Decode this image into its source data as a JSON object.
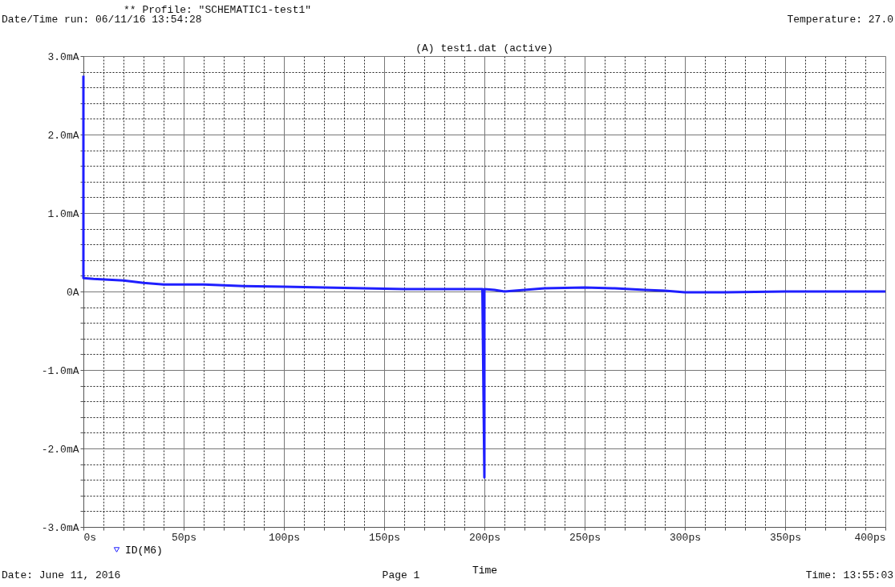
{
  "chart_data": {
    "type": "line",
    "title": "(A) test1.dat (active)",
    "xlabel": "Time",
    "annotations": [
      "** Profile: \"SCHEMATIC1-test1\"",
      "Date/Time run: 06/11/16 13:54:28",
      "Temperature: 27.0",
      "Date: June 11, 2016",
      "Page 1",
      "Time: 13:55:03"
    ],
    "series": [
      {
        "name": "ID(M6)",
        "color": "#1f1fff",
        "x": [
          0,
          0,
          5,
          20,
          30,
          40,
          60,
          80,
          100,
          120,
          140,
          160,
          180,
          199,
          200,
          200,
          205,
          210,
          230,
          250,
          265,
          280,
          290,
          300,
          320,
          350,
          400
        ],
        "values": [
          2.75,
          0.17,
          0.16,
          0.14,
          0.11,
          0.09,
          0.09,
          0.07,
          0.06,
          0.05,
          0.04,
          0.03,
          0.03,
          0.03,
          -2.37,
          0.03,
          0.02,
          0.0,
          0.04,
          0.05,
          0.04,
          0.02,
          0.01,
          -0.01,
          -0.01,
          0.0,
          0.0
        ]
      }
    ],
    "xlim": [
      0,
      400
    ],
    "ylim": [
      -3,
      3
    ],
    "xticks": [
      {
        "value": 0,
        "label": "0s"
      },
      {
        "value": 50,
        "label": "50ps"
      },
      {
        "value": 100,
        "label": "100ps"
      },
      {
        "value": 150,
        "label": "150ps"
      },
      {
        "value": 200,
        "label": "200ps"
      },
      {
        "value": 250,
        "label": "250ps"
      },
      {
        "value": 300,
        "label": "300ps"
      },
      {
        "value": 350,
        "label": "350ps"
      },
      {
        "value": 400,
        "label": "400ps"
      },
      {
        "value": 10,
        "label": null
      },
      {
        "value": 20,
        "label": null
      },
      {
        "value": 30,
        "label": null
      },
      {
        "value": 40,
        "label": null
      },
      {
        "value": 60,
        "label": null
      },
      {
        "value": 70,
        "label": null
      },
      {
        "value": 80,
        "label": null
      },
      {
        "value": 90,
        "label": null
      },
      {
        "value": 110,
        "label": null
      },
      {
        "value": 120,
        "label": null
      },
      {
        "value": 130,
        "label": null
      },
      {
        "value": 140,
        "label": null
      },
      {
        "value": 160,
        "label": null
      },
      {
        "value": 170,
        "label": null
      },
      {
        "value": 180,
        "label": null
      },
      {
        "value": 190,
        "label": null
      },
      {
        "value": 210,
        "label": null
      },
      {
        "value": 220,
        "label": null
      },
      {
        "value": 230,
        "label": null
      },
      {
        "value": 240,
        "label": null
      },
      {
        "value": 260,
        "label": null
      },
      {
        "value": 270,
        "label": null
      },
      {
        "value": 280,
        "label": null
      },
      {
        "value": 290,
        "label": null
      },
      {
        "value": 310,
        "label": null
      },
      {
        "value": 320,
        "label": null
      },
      {
        "value": 330,
        "label": null
      },
      {
        "value": 340,
        "label": null
      },
      {
        "value": 360,
        "label": null
      },
      {
        "value": 370,
        "label": null
      },
      {
        "value": 380,
        "label": null
      },
      {
        "value": 390,
        "label": null
      }
    ],
    "yticks": [
      {
        "value": -3,
        "label": "-3.0mA"
      },
      {
        "value": -2,
        "label": "-2.0mA"
      },
      {
        "value": -1,
        "label": "-1.0mA"
      },
      {
        "value": 0,
        "label": "0A"
      },
      {
        "value": 1,
        "label": "1.0mA"
      },
      {
        "value": 2,
        "label": "2.0mA"
      },
      {
        "value": 3,
        "label": "3.0mA"
      },
      {
        "value": -2.8,
        "label": null
      },
      {
        "value": -2.6,
        "label": null
      },
      {
        "value": -2.4,
        "label": null
      },
      {
        "value": -2.2,
        "label": null
      },
      {
        "value": -1.8,
        "label": null
      },
      {
        "value": -1.6,
        "label": null
      },
      {
        "value": -1.4,
        "label": null
      },
      {
        "value": -1.2,
        "label": null
      },
      {
        "value": -0.8,
        "label": null
      },
      {
        "value": -0.6,
        "label": null
      },
      {
        "value": -0.4,
        "label": null
      },
      {
        "value": -0.2,
        "label": null
      },
      {
        "value": 0.2,
        "label": null
      },
      {
        "value": 0.4,
        "label": null
      },
      {
        "value": 0.6,
        "label": null
      },
      {
        "value": 0.8,
        "label": null
      },
      {
        "value": 1.2,
        "label": null
      },
      {
        "value": 1.4,
        "label": null
      },
      {
        "value": 1.6,
        "label": null
      },
      {
        "value": 1.8,
        "label": null
      },
      {
        "value": 2.2,
        "label": null
      },
      {
        "value": 2.4,
        "label": null
      },
      {
        "value": 2.6,
        "label": null
      },
      {
        "value": 2.8,
        "label": null
      }
    ],
    "grid": true,
    "legend": "bottom left",
    "line_style": "solid"
  }
}
